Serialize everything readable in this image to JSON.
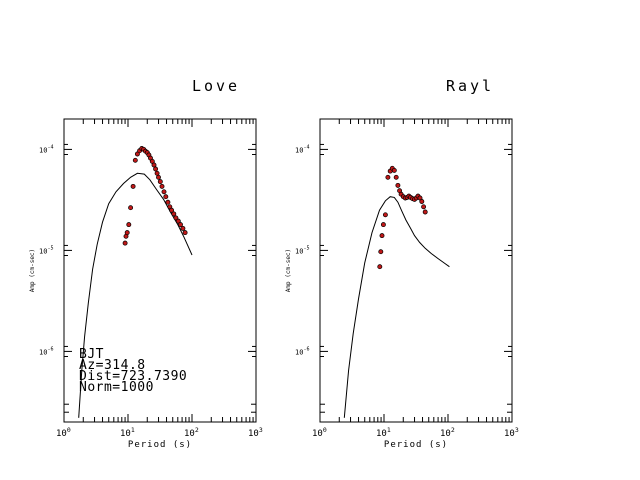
{
  "colors": {
    "axis": "#000000",
    "curve": "#000000",
    "marker_fill": "#c01818",
    "marker_edge": "#000000",
    "background": "#ffffff"
  },
  "station_info": {
    "station": "BJT",
    "azimuth": "Az=314.8",
    "distance": "Dist=723.7390",
    "norm": "Norm=1000"
  },
  "chart_data": [
    {
      "type": "scatter",
      "title": "Love",
      "xlabel": "Period (s)",
      "ylabel": "Amp (cm-sec)",
      "xscale": "log",
      "yscale": "log",
      "xlim": [
        1,
        1000
      ],
      "ylim": [
        2e-07,
        0.0002
      ],
      "x_ticks": [
        "10⁰",
        "10¹",
        "10²",
        "10³"
      ],
      "y_ticks": [
        "10⁻⁶",
        "10⁻⁵",
        "10⁻⁴"
      ],
      "grid": false,
      "series": [
        {
          "kind": "line",
          "x": [
            1.7,
            1.9,
            2.1,
            2.4,
            2.8,
            3.3,
            4.0,
            5.0,
            6.5,
            8.5,
            11.0,
            14.0,
            18.0,
            22.0,
            28.0,
            36.0,
            46.0,
            60.0,
            75.0,
            100.0
          ],
          "y": [
            2.2e-07,
            6.5e-07,
            1.4e-06,
            3e-06,
            6.5e-06,
            1.15e-05,
            1.9e-05,
            2.9e-05,
            3.8e-05,
            4.6e-05,
            5.3e-05,
            5.8e-05,
            5.7e-05,
            5e-05,
            4e-05,
            3.2e-05,
            2.4e-05,
            1.8e-05,
            1.35e-05,
            9e-06
          ]
        },
        {
          "kind": "points",
          "x": [
            9.0,
            9.3,
            9.7,
            10.3,
            11.0,
            12.0,
            13.0,
            14.0,
            15.2,
            16.4,
            17.6,
            18.8,
            20.0,
            21.2,
            22.5,
            24.0,
            25.5,
            27.0,
            28.5,
            30.0,
            32.0,
            34.0,
            36.5,
            39.0,
            42.0,
            45.0,
            48.0,
            52.0,
            56.0,
            61.0,
            66.0,
            72.0,
            78.0
          ],
          "y": [
            1.18e-05,
            1.38e-05,
            1.5e-05,
            1.8e-05,
            2.65e-05,
            4.3e-05,
            7.8e-05,
            9e-05,
            9.7e-05,
            0.000102,
            0.0001,
            9.6e-05,
            9.3e-05,
            8.8e-05,
            8.2e-05,
            7.6e-05,
            7e-05,
            6.4e-05,
            5.8e-05,
            5.3e-05,
            4.8e-05,
            4.3e-05,
            3.8e-05,
            3.4e-05,
            3e-05,
            2.7e-05,
            2.5e-05,
            2.3e-05,
            2.1e-05,
            1.95e-05,
            1.8e-05,
            1.65e-05,
            1.5e-05
          ]
        }
      ]
    },
    {
      "type": "scatter",
      "title": "Rayl",
      "xlabel": "Period (s)",
      "ylabel": "Amp (cm-sec)",
      "xscale": "log",
      "yscale": "log",
      "xlim": [
        1,
        1000
      ],
      "ylim": [
        2e-07,
        0.0002
      ],
      "x_ticks": [
        "10⁰",
        "10¹",
        "10²",
        "10³"
      ],
      "y_ticks": [
        "10⁻⁶",
        "10⁻⁵",
        "10⁻⁴"
      ],
      "grid": false,
      "series": [
        {
          "kind": "line",
          "x": [
            2.4,
            2.8,
            3.3,
            4.0,
            5.0,
            6.5,
            8.5,
            10.5,
            12.5,
            14.5,
            16.5,
            19.0,
            22.0,
            26.0,
            30.0,
            36.0,
            44.0,
            55.0,
            70.0,
            90.0,
            105.0
          ],
          "y": [
            2.2e-07,
            6.5e-07,
            1.5e-06,
            3.3e-06,
            7.5e-06,
            1.5e-05,
            2.5e-05,
            3.1e-05,
            3.4e-05,
            3.35e-05,
            3e-05,
            2.45e-05,
            2e-05,
            1.65e-05,
            1.4e-05,
            1.2e-05,
            1.05e-05,
            9.3e-06,
            8.3e-06,
            7.4e-06,
            6.9e-06
          ]
        },
        {
          "kind": "points",
          "x": [
            8.6,
            8.9,
            9.3,
            9.8,
            10.5,
            11.5,
            12.5,
            13.5,
            14.5,
            15.5,
            16.5,
            17.5,
            18.5,
            20.0,
            21.5,
            23.0,
            24.5,
            26.0,
            28.0,
            30.0,
            32.0,
            34.0,
            36.5,
            39.0,
            41.5,
            44.0
          ],
          "y": [
            6.9e-06,
            9.7e-06,
            1.4e-05,
            1.8e-05,
            2.25e-05,
            5.3e-05,
            6.1e-05,
            6.5e-05,
            6.2e-05,
            5.3e-05,
            4.4e-05,
            3.9e-05,
            3.6e-05,
            3.4e-05,
            3.3e-05,
            3.35e-05,
            3.45e-05,
            3.35e-05,
            3.25e-05,
            3.2e-05,
            3.3e-05,
            3.45e-05,
            3.3e-05,
            3.05e-05,
            2.7e-05,
            2.4e-05
          ]
        }
      ]
    }
  ]
}
